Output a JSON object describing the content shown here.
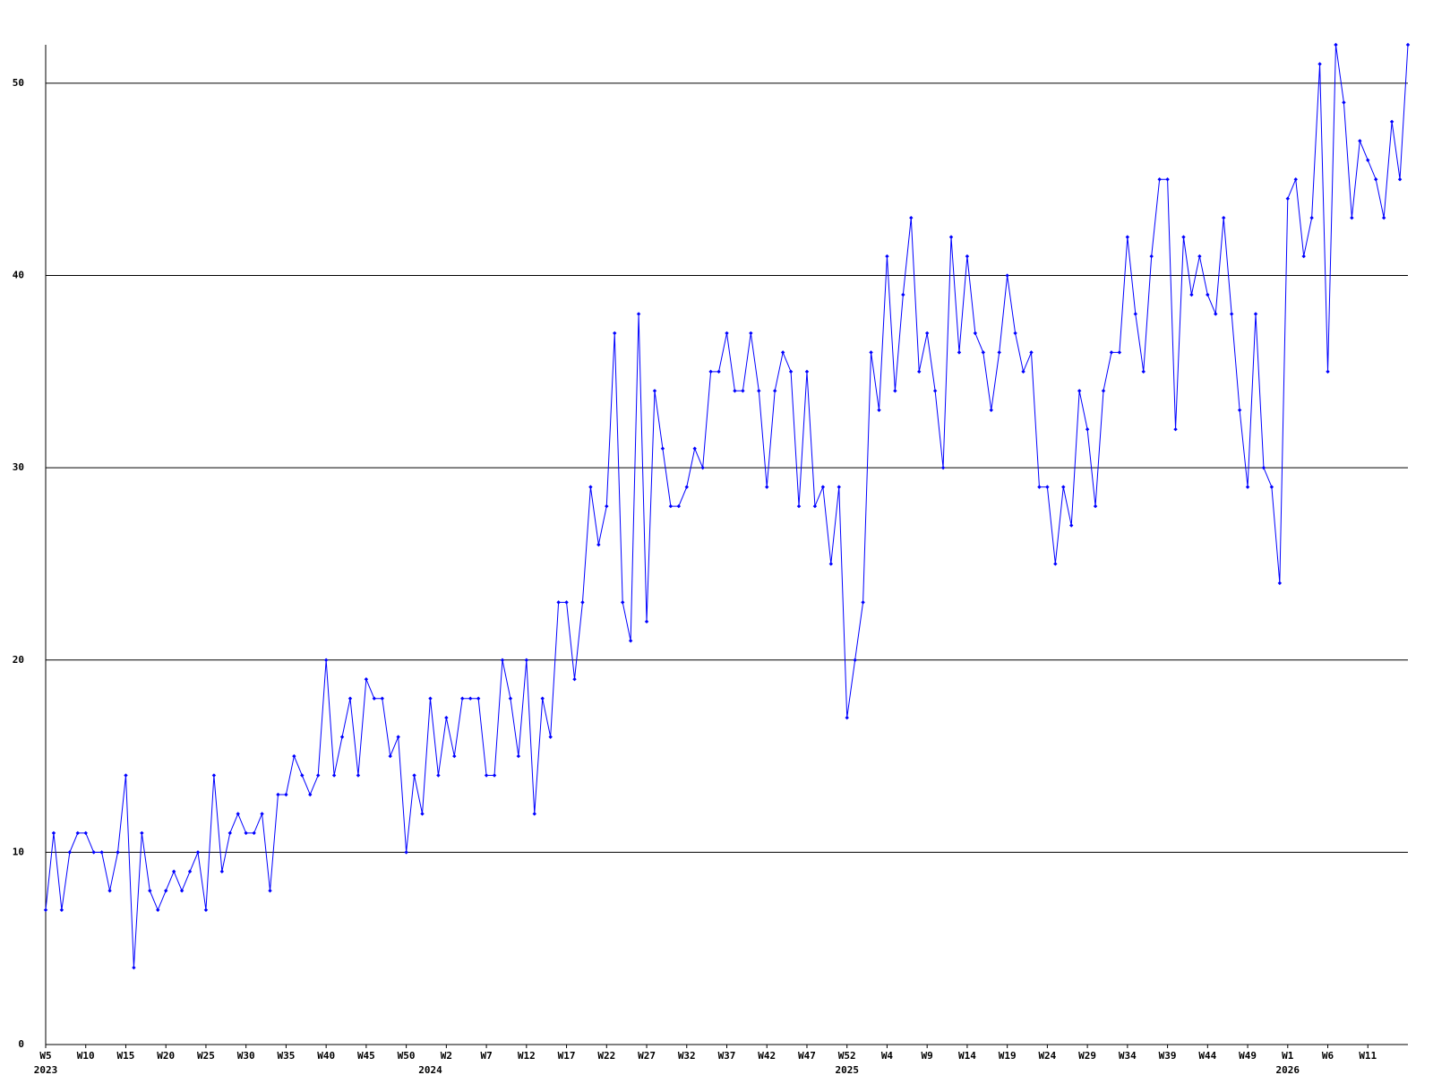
{
  "chart_data": {
    "type": "line",
    "categories": [
      "W5",
      null,
      null,
      null,
      null,
      "W10",
      null,
      null,
      null,
      null,
      "W15",
      null,
      null,
      null,
      null,
      "W20",
      null,
      null,
      null,
      null,
      "W25",
      null,
      null,
      null,
      null,
      "W30",
      null,
      null,
      null,
      null,
      "W35",
      null,
      null,
      null,
      null,
      "W40",
      null,
      null,
      null,
      null,
      "W45",
      null,
      null,
      null,
      null,
      "W50",
      null,
      null,
      null,
      null,
      "W2",
      null,
      null,
      null,
      null,
      "W7",
      null,
      null,
      null,
      null,
      "W12",
      null,
      null,
      null,
      null,
      "W17",
      null,
      null,
      null,
      null,
      "W22",
      null,
      null,
      null,
      null,
      "W27",
      null,
      null,
      null,
      null,
      "W32",
      null,
      null,
      null,
      null,
      "W37",
      null,
      null,
      null,
      null,
      "W42",
      null,
      null,
      null,
      null,
      "W47",
      null,
      null,
      null,
      null,
      "W52",
      null,
      null,
      null,
      null,
      "W4",
      null,
      null,
      null,
      null,
      "W9",
      null,
      null,
      null,
      null,
      "W14",
      null,
      null,
      null,
      null,
      "W19",
      null,
      null,
      null,
      null,
      "W24",
      null,
      null,
      null,
      null,
      "W29",
      null,
      null,
      null,
      null,
      "W34",
      null,
      null,
      null,
      null,
      "W39",
      null,
      null,
      null,
      null,
      "W44",
      null,
      null,
      null,
      null,
      "W49",
      null,
      null,
      null,
      null,
      "W1",
      null,
      null,
      null,
      null,
      "W6",
      null,
      null,
      null,
      null,
      "W11",
      null,
      null,
      null,
      null,
      null
    ],
    "years": [
      {
        "label": "2023",
        "index": 0
      },
      {
        "label": "2024",
        "index": 48
      },
      {
        "label": "2025",
        "index": 100
      },
      {
        "label": "2026",
        "index": 155
      }
    ],
    "series": [
      {
        "color": "#0000ff",
        "values": [
          7,
          11,
          7,
          10,
          11,
          11,
          10,
          10,
          8,
          10,
          14,
          4,
          11,
          8,
          7,
          8,
          9,
          8,
          9,
          10,
          7,
          14,
          9,
          11,
          12,
          11,
          11,
          12,
          8,
          13,
          13,
          15,
          14,
          13,
          14,
          20,
          14,
          16,
          18,
          14,
          19,
          18,
          18,
          15,
          16,
          10,
          14,
          12,
          18,
          14,
          17,
          15,
          18,
          18,
          18,
          14,
          14,
          20,
          18,
          15,
          20,
          12,
          18,
          16,
          23,
          23,
          19,
          23,
          29,
          26,
          28,
          37,
          23,
          21,
          38,
          22,
          34,
          31,
          28,
          28,
          29,
          31,
          30,
          35,
          35,
          37,
          34,
          34,
          37,
          34,
          29,
          34,
          36,
          35,
          28,
          35,
          28,
          29,
          25,
          29,
          17,
          20,
          23,
          36,
          33,
          41,
          34,
          39,
          43,
          35,
          37,
          34,
          30,
          42,
          36,
          41,
          37,
          36,
          33,
          36,
          40,
          37,
          35,
          36,
          29,
          29,
          25,
          29,
          27,
          34,
          32,
          28,
          34,
          36,
          36,
          42,
          38,
          35,
          41,
          45,
          45,
          32,
          42,
          39,
          41,
          39,
          38,
          43,
          38,
          33,
          29,
          38,
          30,
          29,
          24,
          44,
          45,
          41,
          43,
          51,
          35,
          52,
          49,
          43,
          47,
          46,
          45,
          43,
          48,
          45,
          52
        ]
      }
    ],
    "ylim": [
      0,
      52
    ],
    "yticks": [
      0,
      10,
      20,
      30,
      40,
      50
    ],
    "grid": true
  }
}
